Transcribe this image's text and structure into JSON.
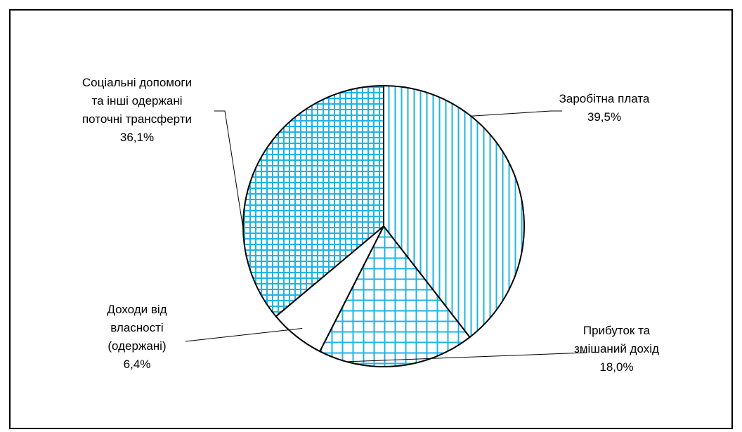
{
  "chart_data": {
    "type": "pie",
    "title": "",
    "start_angle_deg": 0,
    "direction": "clockwise",
    "series": [
      {
        "name": "",
        "pattern": "vertical-lines",
        "lines": [
          "Заробітна плата",
          "39,5%"
        ],
        "value": 39.5
      },
      {
        "name": "",
        "pattern": "grid",
        "lines": [
          "Прибуток та",
          "змішаний дохід",
          "18,0%"
        ],
        "value": 18.0
      },
      {
        "name": "",
        "pattern": "none",
        "lines": [
          "Доходи від",
          "власності",
          "(одержані)",
          "6,4%"
        ],
        "value": 6.4
      },
      {
        "name": "",
        "pattern": "fine-grid",
        "lines": [
          "Соціальні допомоги",
          "та інші одержані",
          "поточні трансферти",
          "36,1%"
        ],
        "value": 36.1
      }
    ],
    "colors": {
      "hatch": "#1EB4E6",
      "outline": "#000000",
      "background": "#FFFFFF"
    }
  }
}
